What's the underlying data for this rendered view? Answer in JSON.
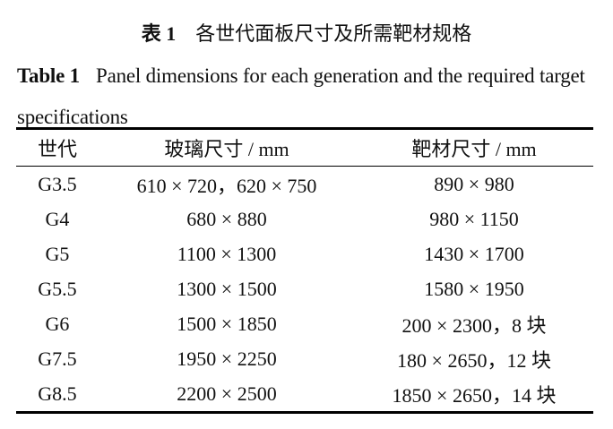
{
  "title": {
    "label": "表 1",
    "text": "各世代面板尺寸及所需靶材规格"
  },
  "caption": {
    "label": "Table 1",
    "text": "Panel dimensions for each generation and the required target specifications"
  },
  "table": {
    "headers": [
      "世代",
      "玻璃尺寸 / mm",
      "靶材尺寸 / mm"
    ],
    "rows": [
      [
        "G3.5",
        "610 × 720，620 × 750",
        "890 × 980"
      ],
      [
        "G4",
        "680 × 880",
        "980 × 1150"
      ],
      [
        "G5",
        "1100 × 1300",
        "1430 × 1700"
      ],
      [
        "G5.5",
        "1300 × 1500",
        "1580 × 1950"
      ],
      [
        "G6",
        "1500 × 1850",
        "200 × 2300，8 块"
      ],
      [
        "G7.5",
        "1950 × 2250",
        "180 × 2650，12 块"
      ],
      [
        "G8.5",
        "2200 × 2500",
        "1850 × 2650，14 块"
      ]
    ]
  }
}
